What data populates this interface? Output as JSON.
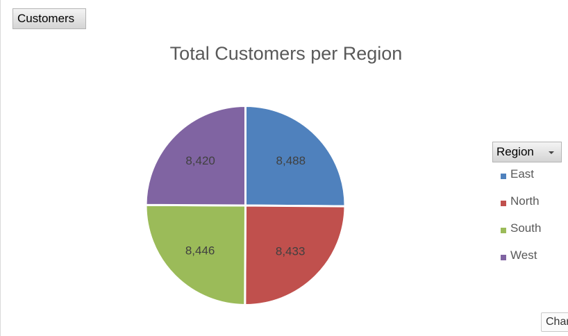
{
  "values_field": {
    "label": "Customers"
  },
  "legend_field": {
    "label": "Region"
  },
  "chart_data": {
    "type": "pie",
    "title": "Total Customers per Region",
    "categories": [
      "East",
      "North",
      "South",
      "West"
    ],
    "values": [
      8488,
      8433,
      8446,
      8420
    ],
    "data_labels": [
      "8,488",
      "8,433",
      "8,446",
      "8,420"
    ],
    "colors": [
      "#4f81bd",
      "#c0504d",
      "#9bbb59",
      "#8064a2"
    ],
    "legend_position": "right"
  },
  "corner_button": {
    "label": "Char"
  }
}
